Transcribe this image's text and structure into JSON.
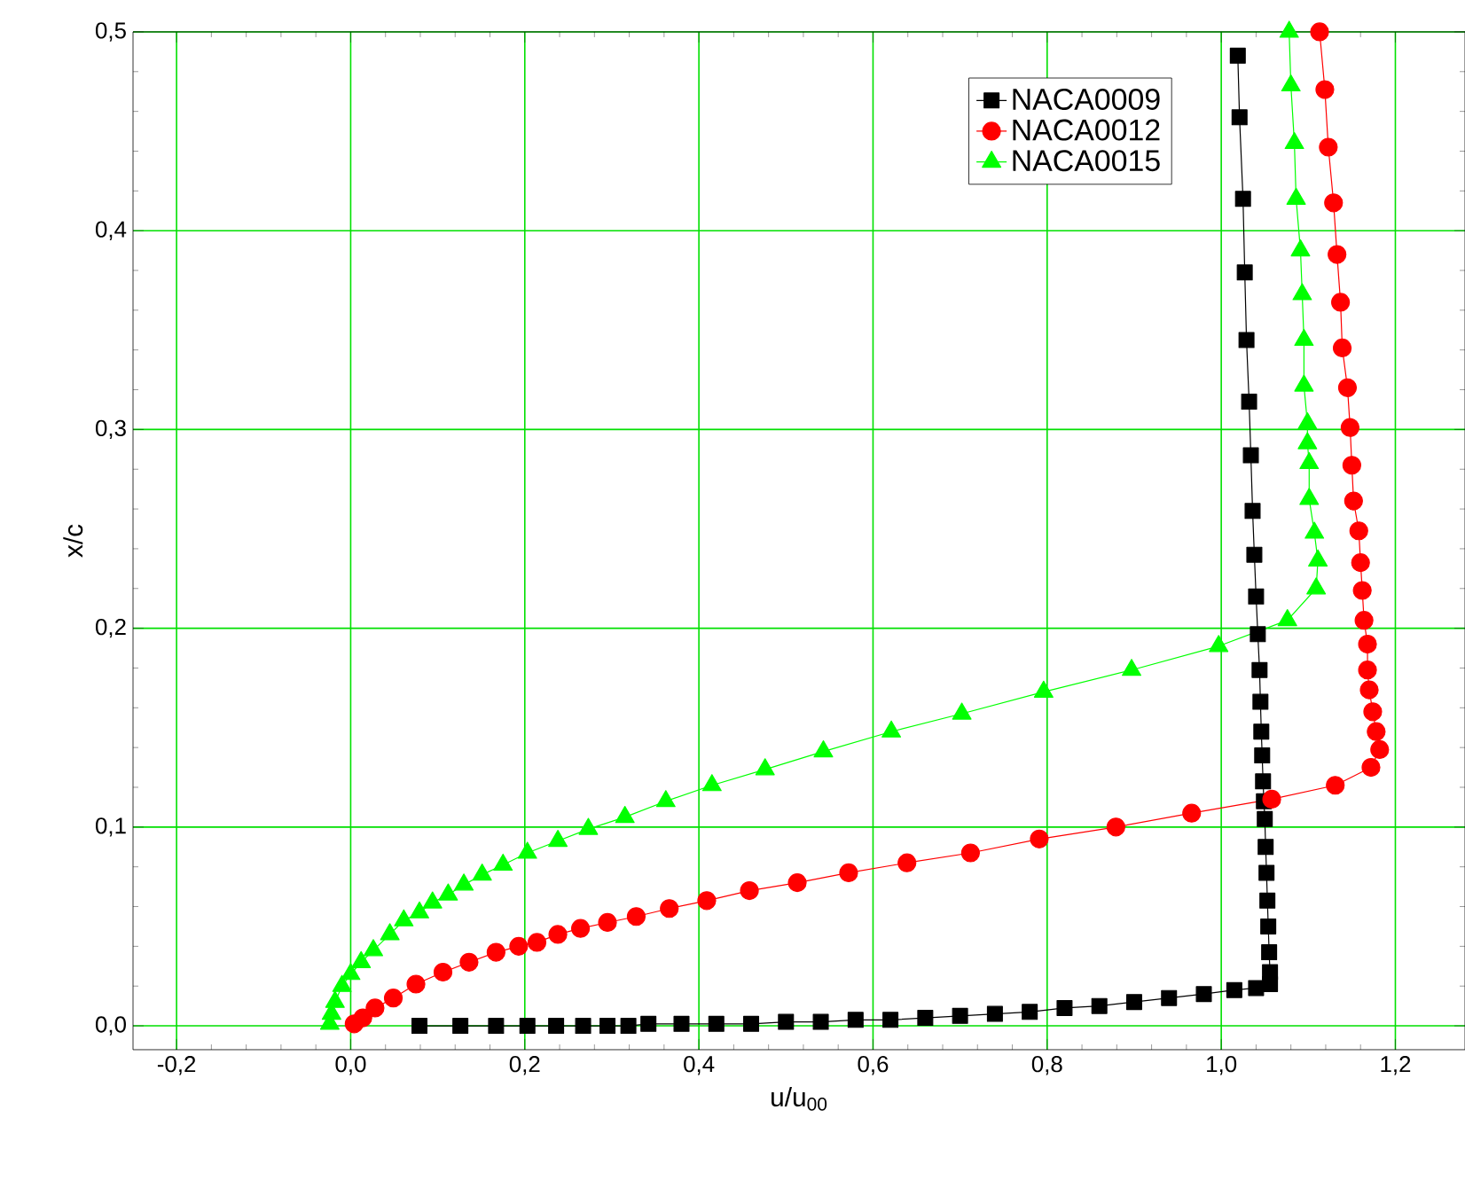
{
  "chart_data": {
    "type": "line",
    "xlabel": "u/u$_{00}$",
    "ylabel": "x/c",
    "xlim": [
      -0.25,
      1.28
    ],
    "ylim": [
      -0.012,
      0.5
    ],
    "xticks": [
      {
        "value": -0.2,
        "label": "-0,2"
      },
      {
        "value": 0,
        "label": "0,0"
      },
      {
        "value": 0.2,
        "label": "0,2"
      },
      {
        "value": 0.4,
        "label": "0,4"
      },
      {
        "value": 0.6,
        "label": "0,6"
      },
      {
        "value": 0.8,
        "label": "0,8"
      },
      {
        "value": 1.0,
        "label": "1,0"
      },
      {
        "value": 1.2,
        "label": "1,2"
      }
    ],
    "yticks": [
      {
        "value": 0,
        "label": "0,0"
      },
      {
        "value": 0.1,
        "label": "0,1"
      },
      {
        "value": 0.2,
        "label": "0,2"
      },
      {
        "value": 0.3,
        "label": "0,3"
      },
      {
        "value": 0.4,
        "label": "0,4"
      },
      {
        "value": 0.5,
        "label": "0,5"
      }
    ],
    "grid": true,
    "legend": "top right",
    "line_style": "solid",
    "series": [
      {
        "name": "NACA0009",
        "color": "#000000",
        "marker": "square",
        "x": [
          0.079,
          0.126,
          0.167,
          0.203,
          0.236,
          0.267,
          0.295,
          0.319,
          0.342,
          0.38,
          0.42,
          0.46,
          0.5,
          0.54,
          0.58,
          0.62,
          0.66,
          0.7,
          0.74,
          0.78,
          0.82,
          0.86,
          0.9,
          0.94,
          0.98,
          1.015,
          1.04,
          1.056,
          1.056,
          1.055,
          1.054,
          1.053,
          1.052,
          1.051,
          1.05,
          1.049,
          1.048,
          1.047,
          1.046,
          1.045,
          1.044,
          1.042,
          1.04,
          1.038,
          1.036,
          1.034,
          1.032,
          1.029,
          1.027,
          1.025,
          1.021,
          1.019
        ],
        "values": [
          0.0,
          0.0,
          0.0,
          0.0,
          0.0,
          0.0,
          0.0,
          0.0,
          0.001,
          0.001,
          0.001,
          0.001,
          0.002,
          0.002,
          0.003,
          0.003,
          0.004,
          0.005,
          0.006,
          0.007,
          0.009,
          0.01,
          0.012,
          0.014,
          0.016,
          0.018,
          0.019,
          0.021,
          0.027,
          0.037,
          0.05,
          0.063,
          0.077,
          0.09,
          0.104,
          0.113,
          0.123,
          0.136,
          0.148,
          0.163,
          0.179,
          0.197,
          0.216,
          0.237,
          0.259,
          0.287,
          0.314,
          0.345,
          0.379,
          0.416,
          0.457,
          0.488
        ]
      },
      {
        "name": "NACA0012",
        "color": "#ff0000",
        "marker": "circle",
        "x": [
          0.004,
          0.014,
          0.028,
          0.049,
          0.075,
          0.106,
          0.136,
          0.167,
          0.193,
          0.214,
          0.238,
          0.264,
          0.295,
          0.328,
          0.366,
          0.409,
          0.458,
          0.513,
          0.572,
          0.639,
          0.712,
          0.791,
          0.879,
          0.966,
          1.058,
          1.131,
          1.172,
          1.182,
          1.178,
          1.174,
          1.17,
          1.168,
          1.168,
          1.164,
          1.162,
          1.16,
          1.158,
          1.152,
          1.15,
          1.148,
          1.145,
          1.139,
          1.137,
          1.133,
          1.129,
          1.123,
          1.119,
          1.113
        ],
        "values": [
          0.001,
          0.004,
          0.009,
          0.014,
          0.021,
          0.027,
          0.032,
          0.037,
          0.04,
          0.042,
          0.046,
          0.049,
          0.052,
          0.055,
          0.059,
          0.063,
          0.068,
          0.072,
          0.077,
          0.082,
          0.087,
          0.094,
          0.1,
          0.107,
          0.114,
          0.121,
          0.13,
          0.139,
          0.148,
          0.158,
          0.169,
          0.179,
          0.192,
          0.204,
          0.219,
          0.233,
          0.249,
          0.264,
          0.282,
          0.301,
          0.321,
          0.341,
          0.364,
          0.388,
          0.414,
          0.442,
          0.471,
          0.5
        ]
      },
      {
        "name": "NACA0015",
        "color": "#00ff00",
        "marker": "triangle",
        "x": [
          -0.024,
          -0.022,
          -0.018,
          -0.01,
          0.0,
          0.012,
          0.026,
          0.045,
          0.061,
          0.079,
          0.094,
          0.112,
          0.13,
          0.151,
          0.175,
          0.203,
          0.238,
          0.273,
          0.315,
          0.362,
          0.415,
          0.476,
          0.543,
          0.621,
          0.702,
          0.796,
          0.897,
          0.997,
          1.076,
          1.109,
          1.111,
          1.107,
          1.101,
          1.101,
          1.099,
          1.099,
          1.095,
          1.095,
          1.093,
          1.091,
          1.086,
          1.084,
          1.08,
          1.078
        ],
        "values": [
          0.001,
          0.006,
          0.012,
          0.02,
          0.026,
          0.032,
          0.038,
          0.046,
          0.053,
          0.057,
          0.062,
          0.066,
          0.071,
          0.076,
          0.081,
          0.087,
          0.093,
          0.099,
          0.105,
          0.113,
          0.121,
          0.129,
          0.138,
          0.148,
          0.157,
          0.168,
          0.179,
          0.191,
          0.204,
          0.22,
          0.234,
          0.248,
          0.265,
          0.283,
          0.293,
          0.303,
          0.322,
          0.345,
          0.368,
          0.39,
          0.416,
          0.444,
          0.473,
          0.5
        ]
      }
    ]
  }
}
